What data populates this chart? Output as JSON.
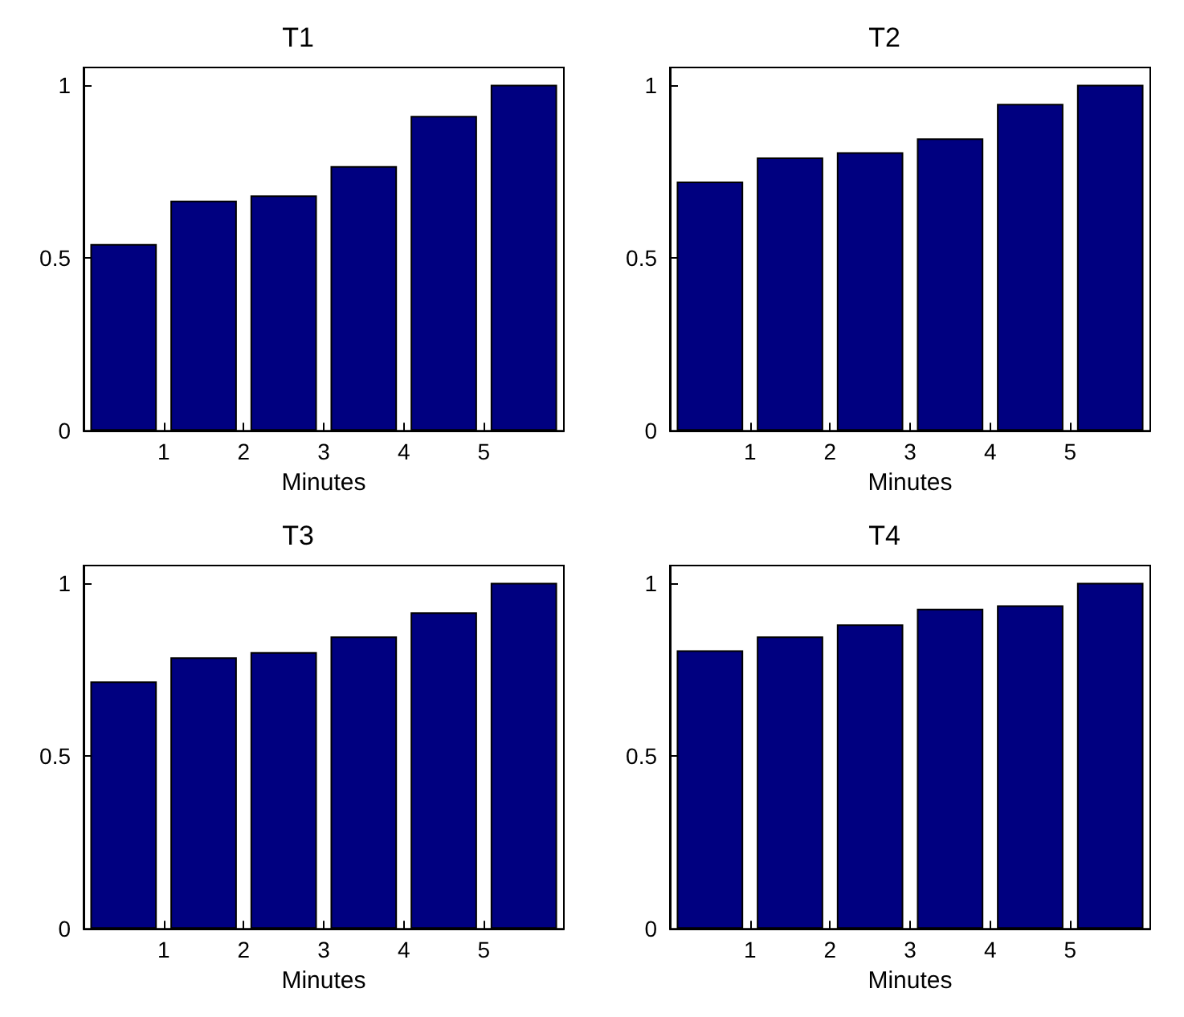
{
  "chart_data": [
    {
      "type": "bar",
      "title": "T1",
      "xlabel": "Minutes",
      "x": [
        0.5,
        1.5,
        2.5,
        3.5,
        4.5,
        5.5
      ],
      "values": [
        0.54,
        0.665,
        0.68,
        0.765,
        0.91,
        1.0
      ],
      "color": "#000080",
      "xlim": [
        0,
        6
      ],
      "xticks": [
        1,
        2,
        3,
        4,
        5
      ],
      "ylim": [
        0,
        1.05
      ],
      "yticks": [
        0,
        0.5,
        1
      ]
    },
    {
      "type": "bar",
      "title": "T2",
      "xlabel": "Minutes",
      "x": [
        0.5,
        1.5,
        2.5,
        3.5,
        4.5,
        5.5
      ],
      "values": [
        0.72,
        0.79,
        0.805,
        0.845,
        0.945,
        1.0
      ],
      "color": "#000080",
      "xlim": [
        0,
        6
      ],
      "xticks": [
        1,
        2,
        3,
        4,
        5
      ],
      "ylim": [
        0,
        1.05
      ],
      "yticks": [
        0,
        0.5,
        1
      ]
    },
    {
      "type": "bar",
      "title": "T3",
      "xlabel": "Minutes",
      "x": [
        0.5,
        1.5,
        2.5,
        3.5,
        4.5,
        5.5
      ],
      "values": [
        0.715,
        0.785,
        0.8,
        0.845,
        0.915,
        1.0
      ],
      "color": "#000080",
      "xlim": [
        0,
        6
      ],
      "xticks": [
        1,
        2,
        3,
        4,
        5
      ],
      "ylim": [
        0,
        1.05
      ],
      "yticks": [
        0,
        0.5,
        1
      ]
    },
    {
      "type": "bar",
      "title": "T4",
      "xlabel": "Minutes",
      "x": [
        0.5,
        1.5,
        2.5,
        3.5,
        4.5,
        5.5
      ],
      "values": [
        0.805,
        0.845,
        0.88,
        0.925,
        0.935,
        1.0
      ],
      "color": "#000080",
      "xlim": [
        0,
        6
      ],
      "xticks": [
        1,
        2,
        3,
        4,
        5
      ],
      "ylim": [
        0,
        1.05
      ],
      "yticks": [
        0,
        0.5,
        1
      ]
    }
  ]
}
